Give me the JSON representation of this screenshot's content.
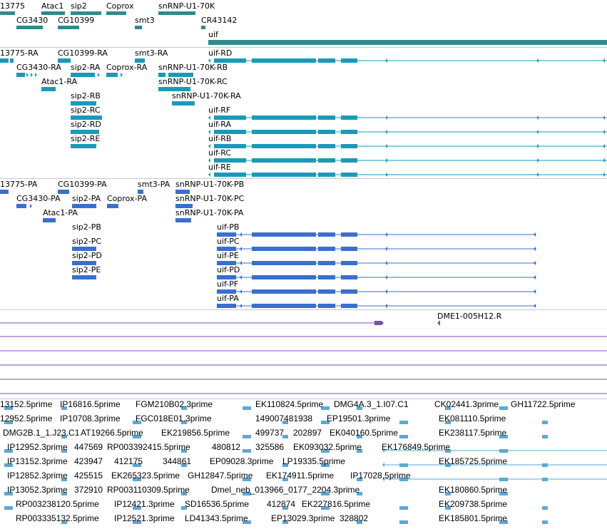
{
  "colors": {
    "gene": "#2e8b8b",
    "transcript": "#1a9ab8",
    "protein": "#3a6fcf",
    "primer": "#7b4fb0",
    "est": "#5aa9d6",
    "separator": "#c8c8c8",
    "intron_line": "#555555"
  },
  "tracks": {
    "gene": {
      "labels": [
        {
          "text": "13775"
        },
        {
          "text": "Atac1"
        },
        {
          "text": "sip2"
        },
        {
          "text": "Coprox"
        },
        {
          "text": "snRNP-U1-70K"
        },
        {
          "text": "CG3430"
        },
        {
          "text": "CG10399"
        },
        {
          "text": "smt3"
        },
        {
          "text": "CR43142"
        },
        {
          "text": "uif"
        }
      ]
    },
    "transcript": {
      "labels": [
        {
          "text": "13775-RA"
        },
        {
          "text": "CG10399-RA"
        },
        {
          "text": "smt3-RA"
        },
        {
          "text": "uif-RD"
        },
        {
          "text": "CG3430-RA"
        },
        {
          "text": "sip2-RA"
        },
        {
          "text": "Coprox-RA"
        },
        {
          "text": "snRNP-U1-70K-RB"
        },
        {
          "text": "Atac1-RA"
        },
        {
          "text": "snRNP-U1-70K-RC"
        },
        {
          "text": "sip2-RB"
        },
        {
          "text": "snRNP-U1-70K-RA"
        },
        {
          "text": "sip2-RC"
        },
        {
          "text": "uif-RF"
        },
        {
          "text": "sip2-RD"
        },
        {
          "text": "uif-RA"
        },
        {
          "text": "sip2-RE"
        },
        {
          "text": "uif-RB"
        },
        {
          "text": "uif-RC"
        },
        {
          "text": "uif-RE"
        }
      ]
    },
    "protein": {
      "labels": [
        {
          "text": "13775-PA"
        },
        {
          "text": "CG10399-PA"
        },
        {
          "text": "smt3-PA"
        },
        {
          "text": "snRNP-U1-70K-PB"
        },
        {
          "text": "CG3430-PA"
        },
        {
          "text": "sip2-PA"
        },
        {
          "text": "Coprox-PA"
        },
        {
          "text": "snRNP-U1-70K-PC"
        },
        {
          "text": "Atac1-PA"
        },
        {
          "text": "snRNP-U1-70K-PA"
        },
        {
          "text": "sip2-PB"
        },
        {
          "text": "uif-PB"
        },
        {
          "text": "sip2-PC"
        },
        {
          "text": "uif-PC"
        },
        {
          "text": "sip2-PD"
        },
        {
          "text": "uif-PE"
        },
        {
          "text": "sip2-PE"
        },
        {
          "text": "uif-PD"
        },
        {
          "text": "uif-PF"
        },
        {
          "text": "uif-PA"
        }
      ]
    },
    "primer": {
      "labels": [
        {
          "text": "DME1-005H12.R"
        }
      ]
    },
    "est": {
      "labels": [
        {
          "text": "13152.5prime"
        },
        {
          "text": "IP16816.5prime"
        },
        {
          "text": "FGM210B02.3prime"
        },
        {
          "text": "EK110824.5prime"
        },
        {
          "text": "DMG4A.3_1.I07.C1"
        },
        {
          "text": "CK02441.3prime"
        },
        {
          "text": "GH11722.5prime"
        },
        {
          "text": "12952.5prime"
        },
        {
          "text": "IP10708.3prime"
        },
        {
          "text": "FGC018E01.3prime"
        },
        {
          "text": "149007481938"
        },
        {
          "text": "EP19501.3prime"
        },
        {
          "text": "EK081110.5prime"
        },
        {
          "text": "DMG2B.1_1.J23.C1"
        },
        {
          "text": "AT19266.5prime"
        },
        {
          "text": "EK219856.5prime"
        },
        {
          "text": "499737"
        },
        {
          "text": "202897"
        },
        {
          "text": "EK040160.5prime"
        },
        {
          "text": "EK238117.5prime"
        },
        {
          "text": "IP12952.3prime"
        },
        {
          "text": "447569"
        },
        {
          "text": "RP003392415.5prime"
        },
        {
          "text": "480812"
        },
        {
          "text": "325586"
        },
        {
          "text": "EK093032.5prime"
        },
        {
          "text": "EK176849.5prime"
        },
        {
          "text": "IP13152.3prime"
        },
        {
          "text": "423947"
        },
        {
          "text": "412175"
        },
        {
          "text": "344861"
        },
        {
          "text": "EP09028.3prime"
        },
        {
          "text": "LP19335.5prime"
        },
        {
          "text": "EK185725.5prime"
        },
        {
          "text": "IP12852.3prime"
        },
        {
          "text": "425515"
        },
        {
          "text": "EK265323.5prime"
        },
        {
          "text": "GH12847.5prime"
        },
        {
          "text": "EK174911.5prime"
        },
        {
          "text": "IP17028.5prime"
        },
        {
          "text": "IP13052.3prime"
        },
        {
          "text": "372910"
        },
        {
          "text": "RP003110309.5prime"
        },
        {
          "text": "Dmel_neb_013966_0177_2204.3prime"
        },
        {
          "text": "EK180860.5prime"
        },
        {
          "text": "RP003238120.5prime"
        },
        {
          "text": "IP12421.3prime"
        },
        {
          "text": "SD16536.5prime"
        },
        {
          "text": "412874"
        },
        {
          "text": "EK227816.5prime"
        },
        {
          "text": "EK209738.5prime"
        },
        {
          "text": "RP003335132.5prime"
        },
        {
          "text": "IP12521.3prime"
        },
        {
          "text": "LD41343.5prime"
        },
        {
          "text": "EP13029.3prime"
        },
        {
          "text": "328802"
        },
        {
          "text": "EK185801.5prime"
        }
      ]
    }
  }
}
